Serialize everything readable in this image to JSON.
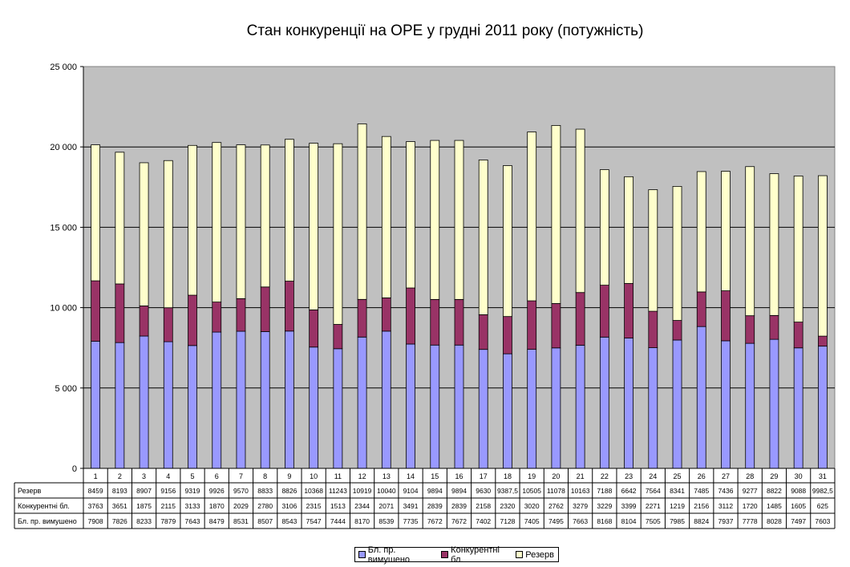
{
  "chart_data": {
    "type": "bar",
    "stacked": true,
    "title": "Стан конкуренції на ОРЕ  у грудні 2011 року (потужність)",
    "categories": [
      "1",
      "2",
      "3",
      "4",
      "5",
      "6",
      "7",
      "8",
      "9",
      "10",
      "11",
      "12",
      "13",
      "14",
      "15",
      "16",
      "17",
      "18",
      "19",
      "20",
      "21",
      "22",
      "23",
      "24",
      "25",
      "26",
      "27",
      "28",
      "29",
      "30",
      "31"
    ],
    "ylim": [
      0,
      25000
    ],
    "yticks": [
      "0",
      "5 000",
      "10 000",
      "15 000",
      "20 000",
      "25 000"
    ],
    "ytick_values": [
      0,
      5000,
      10000,
      15000,
      20000,
      25000
    ],
    "grid": true,
    "legend_position": "bottom",
    "series": [
      {
        "name": "Бл. пр. вимушено",
        "color": "#9999ff",
        "values": [
          7908,
          7826,
          8233,
          7879,
          7643,
          8479,
          8531,
          8507,
          8543,
          7547,
          7444,
          8170,
          8539,
          7735,
          7672,
          7672,
          7402,
          7128,
          7405,
          7495,
          7663,
          8168,
          8104,
          7505,
          7985,
          8824,
          7937,
          7778,
          8028,
          7497,
          7603
        ],
        "labels": [
          "7908",
          "7826",
          "8233",
          "7879",
          "7643",
          "8479",
          "8531",
          "8507",
          "8543",
          "7547",
          "7444",
          "8170",
          "8539",
          "7735",
          "7672",
          "7672",
          "7402",
          "7128",
          "7405",
          "7495",
          "7663",
          "8168",
          "8104",
          "7505",
          "7985",
          "8824",
          "7937",
          "7778",
          "8028",
          "7497",
          "7603"
        ]
      },
      {
        "name": "Конкурентні бл.",
        "color": "#993366",
        "values": [
          3763,
          3651,
          1875,
          2115,
          3133,
          1870,
          2029,
          2780,
          3106,
          2315,
          1513,
          2344,
          2071,
          3491,
          2839,
          2839,
          2158,
          2320,
          3020,
          2762,
          3279,
          3229,
          3399,
          2271,
          1219,
          2156,
          3112,
          1720,
          1485,
          1605,
          625
        ],
        "labels": [
          "3763",
          "3651",
          "1875",
          "2115",
          "3133",
          "1870",
          "2029",
          "2780",
          "3106",
          "2315",
          "1513",
          "2344",
          "2071",
          "3491",
          "2839",
          "2839",
          "2158",
          "2320",
          "3020",
          "2762",
          "3279",
          "3229",
          "3399",
          "2271",
          "1219",
          "2156",
          "3112",
          "1720",
          "1485",
          "1605",
          "625"
        ]
      },
      {
        "name": "Резерв",
        "color": "#ffffcc",
        "values": [
          8459,
          8193,
          8907,
          9156,
          9319,
          9926,
          9570,
          8833,
          8826,
          10368,
          11243,
          10919,
          10040,
          9104,
          9894,
          9894,
          9630,
          9387.5,
          10505,
          11078,
          10163,
          7188,
          6642,
          7564,
          8341,
          7485,
          7436,
          9277,
          8822,
          9088,
          9982.5
        ],
        "labels": [
          "8459",
          "8193",
          "8907",
          "9156",
          "9319",
          "9926",
          "9570",
          "8833",
          "8826",
          "10368",
          "11243",
          "10919",
          "10040",
          "9104",
          "9894",
          "9894",
          "9630",
          "9387,5",
          "10505",
          "11078",
          "10163",
          "7188",
          "6642",
          "7564",
          "8341",
          "7485",
          "7436",
          "9277",
          "8822",
          "9088",
          "9982,5"
        ]
      }
    ],
    "table_rows": [
      "Резерв",
      "Конкурентні бл.",
      "Бл. пр. вимушено"
    ]
  }
}
